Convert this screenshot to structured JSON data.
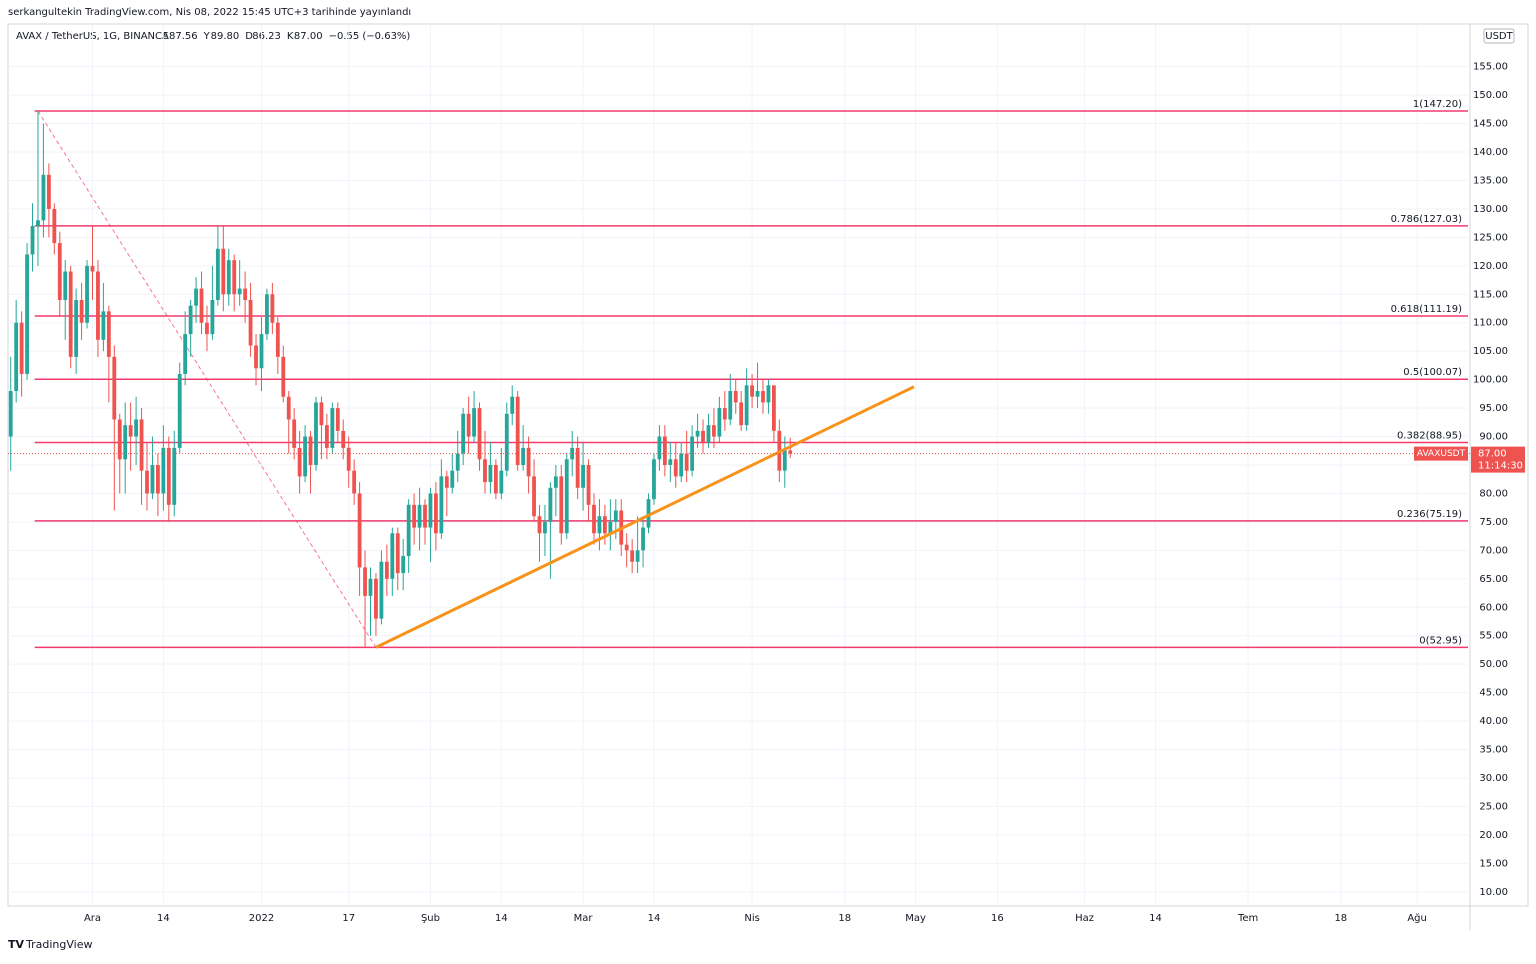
{
  "header": {
    "publisher": "serkangultekin TradingView.com, Nis 08, 2022 15:45 UTC+3 tarihinde yayınlandı",
    "symbol": "AVAX / TetherUS, 1G, BINANCE",
    "ohlc": [
      {
        "label": "A",
        "value": "87.56"
      },
      {
        "label": "Y",
        "value": "89.80"
      },
      {
        "label": "D",
        "value": "86.23"
      },
      {
        "label": "K",
        "value": "87.00"
      }
    ],
    "change": "−0.55 (−0.63%)",
    "currency": "USDT"
  },
  "footer": {
    "brand": "TradingView"
  },
  "chart_data": {
    "type": "candlestick",
    "up_color": "#26a69a",
    "down_color": "#ef5350",
    "grid": true,
    "ylim": [
      7.5,
      162.5
    ],
    "xlim": [
      -0.5,
      267.7
    ],
    "yticks": [
      {
        "value": 10,
        "label": "10.00"
      },
      {
        "value": 15,
        "label": "15.00"
      },
      {
        "value": 20,
        "label": "20.00"
      },
      {
        "value": 25,
        "label": "25.00"
      },
      {
        "value": 30,
        "label": "30.00"
      },
      {
        "value": 35,
        "label": "35.00"
      },
      {
        "value": 40,
        "label": "40.00"
      },
      {
        "value": 45,
        "label": "45.00"
      },
      {
        "value": 50,
        "label": "50.00"
      },
      {
        "value": 55,
        "label": "55.00"
      },
      {
        "value": 60,
        "label": "60.00"
      },
      {
        "value": 65,
        "label": "65.00"
      },
      {
        "value": 70,
        "label": "70.00"
      },
      {
        "value": 75,
        "label": "75.00"
      },
      {
        "value": 80,
        "label": "80.00"
      },
      {
        "value": 85,
        "label": "85.00"
      },
      {
        "value": 90,
        "label": "90.00"
      },
      {
        "value": 95,
        "label": "95.00"
      },
      {
        "value": 100,
        "label": "100.00"
      },
      {
        "value": 105,
        "label": "105.00"
      },
      {
        "value": 110,
        "label": "110.00"
      },
      {
        "value": 115,
        "label": "115.00"
      },
      {
        "value": 120,
        "label": "120.00"
      },
      {
        "value": 125,
        "label": "125.00"
      },
      {
        "value": 130,
        "label": "130.00"
      },
      {
        "value": 135,
        "label": "135.00"
      },
      {
        "value": 140,
        "label": "140.00"
      },
      {
        "value": 145,
        "label": "145.00"
      },
      {
        "value": 150,
        "label": "150.00"
      },
      {
        "value": 155,
        "label": "155.00"
      }
    ],
    "xticks": [
      {
        "value": 15,
        "label": "Ara"
      },
      {
        "value": 28,
        "label": "14"
      },
      {
        "value": 46,
        "label": "2022"
      },
      {
        "value": 62,
        "label": "17"
      },
      {
        "value": 77,
        "label": "Şub"
      },
      {
        "value": 90,
        "label": "14"
      },
      {
        "value": 105,
        "label": "Mar"
      },
      {
        "value": 118,
        "label": "14"
      },
      {
        "value": 136,
        "label": "Nis"
      },
      {
        "value": 153,
        "label": "18"
      },
      {
        "value": 166,
        "label": "May"
      },
      {
        "value": 181,
        "label": "16"
      },
      {
        "value": 197,
        "label": "Haz"
      },
      {
        "value": 210,
        "label": "14"
      },
      {
        "value": 227,
        "label": "Tem"
      },
      {
        "value": 244,
        "label": "18"
      },
      {
        "value": 258,
        "label": "Ağu"
      }
    ],
    "open": [
      90,
      98,
      110,
      101,
      122,
      127,
      128,
      136,
      130,
      124,
      114,
      119,
      104,
      114,
      110,
      120,
      119,
      107,
      112,
      104,
      93,
      86,
      92,
      90,
      93,
      84,
      80,
      85,
      80,
      88,
      78,
      88,
      101,
      108,
      113,
      116,
      110,
      108,
      114,
      123,
      115,
      121,
      115,
      116,
      114,
      106,
      102,
      108,
      115,
      110,
      104,
      97,
      93,
      88,
      83,
      90,
      85,
      96,
      92,
      88,
      95,
      91,
      88,
      84,
      80,
      67,
      62,
      65,
      58,
      68,
      65,
      73,
      66,
      69,
      78,
      74,
      78,
      74,
      80,
      73,
      83,
      81,
      84,
      87,
      94,
      90,
      95,
      86,
      82,
      85,
      80,
      84,
      94,
      97,
      85,
      88,
      83,
      76,
      73,
      75,
      81,
      83,
      73,
      86,
      88,
      81,
      85,
      78,
      73,
      76,
      73,
      75,
      77,
      71,
      70,
      68,
      70,
      74,
      79,
      86,
      90,
      85,
      86,
      83,
      87,
      84,
      90,
      91,
      89,
      92,
      90,
      95,
      93,
      98,
      96,
      92,
      99,
      97,
      98,
      96,
      99,
      91,
      84,
      87.56
    ],
    "high": [
      104,
      114,
      112,
      124,
      131,
      147.2,
      145,
      138,
      131,
      126,
      121,
      120,
      116,
      117,
      121,
      127,
      121,
      117,
      113,
      106,
      94,
      96,
      96,
      97,
      95,
      89,
      90,
      87,
      92,
      90,
      91,
      103,
      112,
      114,
      118,
      119,
      113,
      120,
      127,
      127,
      123,
      122,
      121,
      119,
      117,
      108,
      111,
      116,
      117,
      111,
      106,
      98,
      95,
      91,
      92,
      91,
      97,
      97,
      94,
      96,
      96,
      93,
      90,
      86,
      82,
      70,
      67,
      66,
      70,
      71,
      74,
      74,
      72,
      79,
      80,
      81,
      79,
      81,
      82,
      86,
      84,
      87,
      91,
      95,
      97,
      98,
      96,
      91,
      89,
      86,
      88,
      96,
      99,
      98,
      92,
      90,
      86,
      78,
      78,
      82,
      85,
      85,
      87,
      91,
      90,
      89,
      86,
      80,
      79,
      78,
      79,
      79,
      79,
      73,
      72,
      76,
      76,
      80,
      87,
      92,
      92,
      89,
      89,
      89,
      91,
      92,
      94,
      93,
      94,
      95,
      97,
      98,
      101,
      100,
      98,
      102,
      101,
      103,
      100,
      100,
      99,
      93,
      90,
      89.8
    ],
    "low": [
      84,
      96,
      97,
      100,
      119,
      120,
      125,
      125,
      122,
      111,
      107,
      102,
      101,
      107,
      109,
      114,
      104,
      105,
      96,
      77,
      80,
      80,
      84,
      85,
      78,
      77,
      79,
      76,
      77,
      75,
      76,
      87,
      99,
      104,
      110,
      108,
      105,
      107,
      113,
      112,
      113,
      112,
      113,
      110,
      104,
      99,
      98,
      107,
      108,
      101,
      96,
      87,
      86,
      80,
      82,
      80,
      84,
      86,
      86,
      87,
      89,
      86,
      81,
      78,
      62,
      52.95,
      55,
      55,
      57,
      62,
      62,
      63,
      63,
      66,
      71,
      70,
      71,
      68,
      70,
      72,
      76,
      80,
      82,
      85,
      87,
      89,
      84,
      80,
      80,
      79,
      79,
      83,
      92,
      84,
      84,
      80,
      75,
      68,
      69,
      65,
      76,
      71,
      72,
      83,
      79,
      77,
      75,
      71,
      70,
      71,
      70,
      72,
      69,
      67,
      66,
      66,
      67,
      73,
      78,
      84,
      83,
      82,
      81,
      82,
      82,
      83,
      88,
      87,
      88,
      88,
      89,
      91,
      92,
      94,
      91,
      91,
      95,
      95,
      94,
      94,
      89,
      82,
      81,
      86.23
    ],
    "close": [
      98,
      110,
      101,
      122,
      127,
      128,
      136,
      130,
      124,
      114,
      119,
      104,
      114,
      110,
      120,
      119,
      107,
      112,
      104,
      93,
      86,
      92,
      90,
      93,
      84,
      80,
      85,
      80,
      88,
      78,
      88,
      101,
      108,
      113,
      116,
      110,
      108,
      114,
      123,
      115,
      121,
      115,
      116,
      114,
      106,
      102,
      108,
      115,
      110,
      104,
      97,
      93,
      88,
      83,
      90,
      85,
      96,
      92,
      88,
      95,
      91,
      88,
      84,
      80,
      67,
      62,
      65,
      58,
      68,
      65,
      73,
      66,
      69,
      78,
      74,
      78,
      74,
      80,
      73,
      83,
      81,
      84,
      87,
      94,
      90,
      95,
      86,
      82,
      85,
      80,
      84,
      94,
      97,
      85,
      88,
      83,
      76,
      73,
      75,
      81,
      83,
      73,
      86,
      88,
      81,
      85,
      78,
      73,
      76,
      73,
      75,
      77,
      71,
      70,
      68,
      70,
      74,
      79,
      86,
      90,
      85,
      86,
      83,
      87,
      84,
      90,
      91,
      89,
      92,
      90,
      95,
      93,
      98,
      96,
      92,
      99,
      97,
      98,
      96,
      99,
      91,
      84,
      87.56,
      87
    ],
    "fib_color": "#f23a6d",
    "fib_start": 4.4,
    "fib_levels": [
      {
        "value": 147.2,
        "label": "1(147.20)"
      },
      {
        "value": 127.03,
        "label": "0.786(127.03)"
      },
      {
        "value": 111.19,
        "label": "0.618(111.19)"
      },
      {
        "value": 100.07,
        "label": "0.5(100.07)"
      },
      {
        "value": 88.95,
        "label": "0.382(88.95)"
      },
      {
        "value": 75.19,
        "label": "0.236(75.19)"
      },
      {
        "value": 52.95,
        "label": "0(52.95)"
      }
    ],
    "fib_diagonal": {
      "x": [
        5,
        67
      ],
      "y": [
        147.2,
        52.95
      ]
    },
    "trendline": {
      "color": "#f7931a",
      "x": [
        67,
        165.7
      ],
      "y": [
        52.95,
        98.75
      ]
    },
    "last_price": {
      "symbol": "AVAXUSDT",
      "value": 87,
      "label": "87.00",
      "countdown": "11:14:30"
    }
  }
}
